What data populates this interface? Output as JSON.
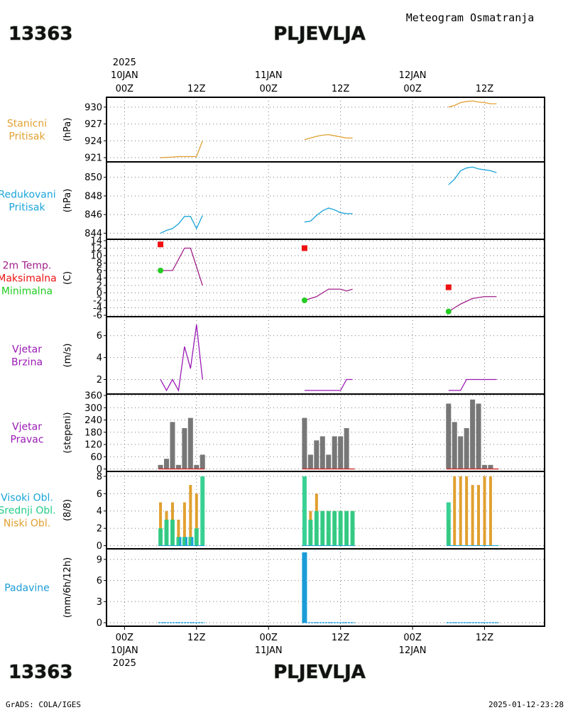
{
  "header": {
    "station_id": "13363",
    "station_name": "PLJEVLJA",
    "product": "Meteogram Osmatranja"
  },
  "time_axis": {
    "top_year": "2025",
    "bottom_year": "2025",
    "ticks": [
      {
        "hour": 0,
        "label": "00Z",
        "date": "10JAN"
      },
      {
        "hour": 12,
        "label": "12Z",
        "date": ""
      },
      {
        "hour": 24,
        "label": "00Z",
        "date": "11JAN"
      },
      {
        "hour": 36,
        "label": "12Z",
        "date": ""
      },
      {
        "hour": 48,
        "label": "00Z",
        "date": "12JAN"
      },
      {
        "hour": 60,
        "label": "12Z",
        "date": ""
      }
    ],
    "range_hours": [
      -3,
      70
    ]
  },
  "footer": {
    "left": "GrADS: COLA/IGES",
    "right": "2025-01-12-23:28"
  },
  "colors": {
    "stanicni": "#e0a030",
    "redukovani": "#1aa4d8",
    "temp_line": "#a0208a",
    "tmax": "#ee1111",
    "tmin": "#22cc22",
    "wind_speed": "#9a1ab4",
    "wind_dir_bar": "#777777",
    "wind_dir_base": "#cc3333",
    "cloud_high": "#1aa4d8",
    "cloud_mid": "#22cc88",
    "cloud_low": "#e0a030",
    "precip": "#1a9cd8"
  },
  "chart_data": [
    {
      "type": "line",
      "labels": [
        "Stanicni",
        "Pritisak"
      ],
      "ylabel": "(hPa)",
      "ylim": [
        920.5,
        931.5
      ],
      "yticks": [
        921,
        924,
        927,
        930
      ],
      "grid": true,
      "series": [
        {
          "x": [
            6,
            8,
            9,
            10,
            11,
            12,
            13
          ],
          "y": [
            921.0,
            921.1,
            921.2,
            921.2,
            921.2,
            921.2,
            924.0
          ]
        },
        {
          "x": [
            30,
            31,
            32,
            33,
            34,
            35,
            36,
            37,
            38
          ],
          "y": [
            924.2,
            924.5,
            924.8,
            925.0,
            925.1,
            924.9,
            924.7,
            924.5,
            924.5
          ]
        },
        {
          "x": [
            54,
            55,
            56,
            57,
            58,
            59,
            60,
            61,
            62
          ],
          "y": [
            930.0,
            930.3,
            930.8,
            931.0,
            931.1,
            930.9,
            930.8,
            930.6,
            930.6
          ]
        }
      ]
    },
    {
      "type": "line",
      "labels": [
        "Redukovani",
        "Pritisak"
      ],
      "ylabel": "(hPa)",
      "ylim": [
        843.5,
        851.5
      ],
      "yticks": [
        844,
        846,
        848,
        850
      ],
      "grid": true,
      "series": [
        {
          "x": [
            6,
            7,
            8,
            9,
            10,
            11,
            12,
            13
          ],
          "y": [
            844.0,
            844.3,
            844.5,
            845.0,
            845.8,
            845.8,
            844.5,
            845.9
          ]
        },
        {
          "x": [
            30,
            31,
            32,
            33,
            34,
            35,
            36,
            37,
            38
          ],
          "y": [
            845.2,
            845.3,
            845.9,
            846.4,
            846.7,
            846.5,
            846.2,
            846.1,
            846.1
          ]
        },
        {
          "x": [
            54,
            55,
            56,
            57,
            58,
            59,
            60,
            61,
            62
          ],
          "y": [
            849.2,
            849.8,
            850.7,
            851.0,
            851.1,
            850.9,
            850.8,
            850.7,
            850.5
          ]
        }
      ]
    },
    {
      "type": "line",
      "labels": [
        "2m Temp.",
        "Maksimalna",
        "Minimalna"
      ],
      "ylabel": "(C)",
      "ylim": [
        -6,
        14
      ],
      "yticks": [
        -6,
        -4,
        -2,
        0,
        2,
        4,
        6,
        8,
        10,
        12,
        14
      ],
      "grid": true,
      "series": [
        {
          "name": "2m Temp.",
          "x": [
            6,
            8,
            10,
            11,
            12,
            13
          ],
          "y": [
            6.0,
            6.0,
            12.0,
            12.0,
            7.0,
            2.0
          ]
        },
        {
          "name": "2m Temp.",
          "x": [
            30,
            32,
            34,
            36,
            37,
            38
          ],
          "y": [
            -2.0,
            -1.0,
            1.0,
            1.0,
            0.5,
            1.0
          ]
        },
        {
          "name": "2m Temp.",
          "x": [
            54,
            56,
            58,
            60,
            61,
            62
          ],
          "y": [
            -5.0,
            -3.0,
            -1.5,
            -1.0,
            -1.0,
            -1.0
          ]
        }
      ],
      "tmax": [
        {
          "x": 6,
          "y": 13.0
        },
        {
          "x": 30,
          "y": 12.0
        },
        {
          "x": 54,
          "y": 1.5
        }
      ],
      "tmin": [
        {
          "x": 6,
          "y": 6.0
        },
        {
          "x": 30,
          "y": -2.0
        },
        {
          "x": 54,
          "y": -5.0
        }
      ]
    },
    {
      "type": "line",
      "labels": [
        "Vjetar",
        "Brzina"
      ],
      "ylabel": "(m/s)",
      "ylim": [
        0.8,
        7.6
      ],
      "yticks": [
        2,
        4,
        6
      ],
      "grid": true,
      "series": [
        {
          "x": [
            6,
            7,
            8,
            9,
            10,
            11,
            12,
            13
          ],
          "y": [
            2,
            1,
            2,
            1,
            5,
            3,
            7,
            2
          ]
        },
        {
          "x": [
            30,
            32,
            34,
            36,
            37,
            38
          ],
          "y": [
            1,
            1,
            1,
            1,
            2,
            2
          ]
        },
        {
          "x": [
            54,
            56,
            57,
            58,
            60,
            62
          ],
          "y": [
            1,
            1,
            2,
            2,
            2,
            2
          ]
        }
      ]
    },
    {
      "type": "bar",
      "labels": [
        "Vjetar",
        "Pravac"
      ],
      "ylabel": "(stepeni)",
      "ylim": [
        -5,
        360
      ],
      "yticks": [
        0,
        60,
        120,
        180,
        240,
        300,
        360
      ],
      "grid": true,
      "x": [
        6,
        7,
        8,
        9,
        10,
        11,
        12,
        13,
        30,
        31,
        32,
        33,
        34,
        35,
        36,
        37,
        38,
        54,
        55,
        56,
        57,
        58,
        59,
        60,
        61,
        62
      ],
      "values": [
        20,
        50,
        230,
        20,
        200,
        250,
        20,
        70,
        250,
        70,
        140,
        160,
        70,
        160,
        160,
        200,
        0,
        320,
        230,
        160,
        200,
        340,
        320,
        20,
        20,
        0
      ]
    },
    {
      "type": "bar",
      "labels": [
        "Visoki Obl.",
        "Srednji Obl.",
        "Niski Obl."
      ],
      "ylabel": "(8/8)",
      "ylim": [
        -0.2,
        8.4
      ],
      "yticks": [
        0,
        2,
        4,
        6,
        8
      ],
      "grid": true,
      "x": [
        6,
        7,
        8,
        9,
        10,
        11,
        12,
        13,
        30,
        31,
        32,
        33,
        34,
        35,
        36,
        37,
        38,
        54,
        55,
        56,
        57,
        58,
        59,
        60,
        61,
        62
      ],
      "series": [
        {
          "name": "Visoki Obl.",
          "values": [
            0,
            0,
            0,
            1,
            1,
            1,
            0,
            0,
            0,
            0,
            0,
            0,
            0,
            0,
            0,
            0,
            0,
            0,
            0,
            0,
            0,
            0,
            0,
            0,
            0,
            0
          ]
        },
        {
          "name": "Srednji Obl.",
          "values": [
            2,
            3,
            3,
            1,
            1,
            1,
            2,
            8,
            8,
            3,
            4,
            4,
            4,
            4,
            4,
            4,
            4,
            5,
            0,
            0,
            0,
            0,
            0,
            0,
            0,
            0
          ]
        },
        {
          "name": "Niski Obl.",
          "values": [
            5,
            4,
            5,
            3,
            5,
            7,
            6,
            0,
            0,
            4,
            6,
            4,
            4,
            4,
            4,
            4,
            4,
            3,
            8,
            8,
            8,
            7,
            7,
            8,
            8,
            0
          ]
        }
      ]
    },
    {
      "type": "bar",
      "labels": [
        "Padavine"
      ],
      "ylabel": "(mm/6h/12h)",
      "ylim": [
        -0.3,
        10.3
      ],
      "yticks": [
        0,
        3,
        6,
        9
      ],
      "grid": true,
      "x": [
        6,
        7,
        8,
        9,
        10,
        11,
        12,
        13,
        30,
        31,
        32,
        33,
        34,
        35,
        36,
        37,
        38,
        54,
        55,
        56,
        57,
        58,
        59,
        60,
        61,
        62
      ],
      "values": [
        0,
        0,
        0,
        0,
        0,
        0,
        0,
        0,
        10,
        0,
        0,
        0,
        0,
        0,
        0,
        0,
        0,
        0,
        0,
        0,
        0,
        0,
        0,
        0,
        0,
        0
      ]
    }
  ]
}
